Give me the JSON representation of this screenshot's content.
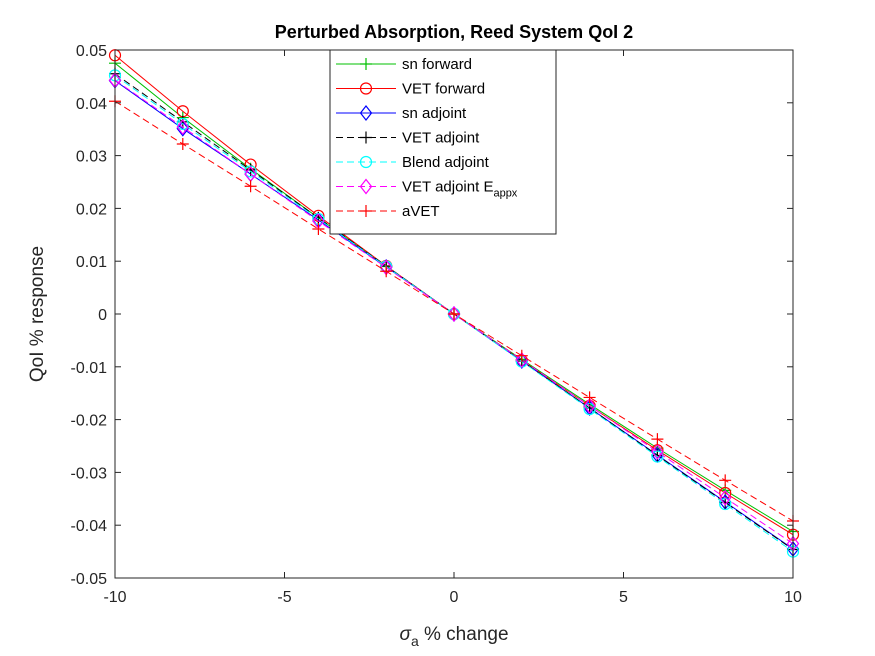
{
  "chart_data": {
    "type": "line",
    "title": "Perturbed Absorption, Reed System QoI 2",
    "xlabel_symbol": "σ",
    "xlabel_subscript": "a",
    "xlabel_rest": " % change",
    "ylabel": "QoI % response",
    "xlim": [
      -10,
      10
    ],
    "ylim": [
      -0.05,
      0.05
    ],
    "xticks": [
      -10,
      -5,
      0,
      5,
      10
    ],
    "xtick_labels": [
      "-10",
      "-5",
      "0",
      "5",
      "10"
    ],
    "yticks": [
      0.05,
      0.04,
      0.03,
      0.02,
      0.01,
      0,
      -0.01,
      -0.02,
      -0.03,
      -0.04,
      -0.05
    ],
    "ytick_labels": [
      "0.05",
      "0.04",
      "0.03",
      "0.02",
      "0.01",
      "0",
      "-0.01",
      "-0.02",
      "-0.03",
      "-0.04",
      "-0.05"
    ],
    "grid": false,
    "legend_position": "top-center",
    "x": [
      -10,
      -8,
      -6,
      -4,
      -2,
      0,
      2,
      4,
      6,
      8,
      10
    ],
    "series": [
      {
        "name": "sn forward",
        "color": "#00c000",
        "dash": "solid",
        "marker": "plus",
        "values": [
          0.0475,
          0.0372,
          0.0275,
          0.0182,
          0.009,
          0,
          -0.0086,
          -0.0171,
          -0.0254,
          -0.0334,
          -0.0412
        ]
      },
      {
        "name": "VET forward",
        "color": "#ff0000",
        "dash": "solid",
        "marker": "circle",
        "values": [
          0.049,
          0.0384,
          0.0283,
          0.0186,
          0.0091,
          0,
          -0.0088,
          -0.0174,
          -0.0258,
          -0.0339,
          -0.0418
        ]
      },
      {
        "name": "sn adjoint",
        "color": "#0000ff",
        "dash": "solid",
        "marker": "diamond",
        "values": [
          0.0442,
          0.0351,
          0.0265,
          0.0178,
          0.0089,
          0,
          -0.0089,
          -0.0178,
          -0.0267,
          -0.0356,
          -0.0445
        ]
      },
      {
        "name": "VET adjoint",
        "color": "#000000",
        "dash": "dashed",
        "marker": "plus",
        "values": [
          0.0455,
          0.0364,
          0.0273,
          0.0182,
          0.0091,
          0,
          -0.0089,
          -0.0178,
          -0.0268,
          -0.0357,
          -0.0446
        ]
      },
      {
        "name": "Blend adjoint",
        "color": "#00ffff",
        "dash": "dashed",
        "marker": "circle",
        "values": [
          0.0452,
          0.036,
          0.027,
          0.018,
          0.009,
          0,
          -0.009,
          -0.018,
          -0.027,
          -0.036,
          -0.045
        ]
      },
      {
        "name": "VET adjoint E",
        "name_subscript": "appx",
        "color": "#ff00ff",
        "dash": "dashed",
        "marker": "diamond",
        "values": [
          0.0443,
          0.0354,
          0.0265,
          0.0176,
          0.0088,
          0,
          -0.0087,
          -0.0174,
          -0.0261,
          -0.0348,
          -0.0435
        ]
      },
      {
        "name": "aVET",
        "color": "#ff0000",
        "dash": "dashed",
        "marker": "plus",
        "values": [
          0.0403,
          0.0322,
          0.0242,
          0.0161,
          0.0081,
          0,
          -0.0079,
          -0.0158,
          -0.0237,
          -0.0315,
          -0.0392
        ]
      }
    ]
  }
}
